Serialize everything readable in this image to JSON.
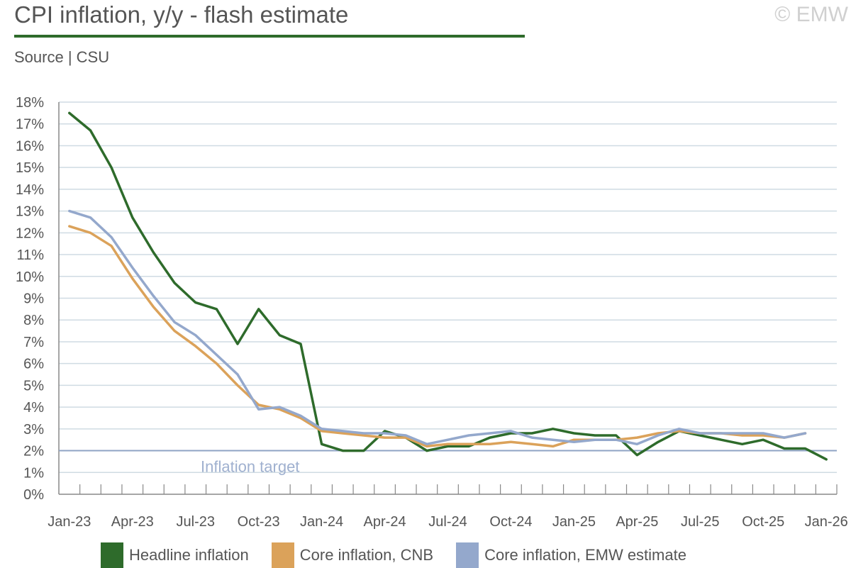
{
  "header": {
    "title": "CPI inflation, y/y - flash estimate",
    "subtitle": "Source | CSU",
    "copyright": "© EMW"
  },
  "colors": {
    "title_rule": "#2e6b2b",
    "grid": "#cfdbe3",
    "axis": "#888888",
    "target_line": "#8fa3c4",
    "target_label": "#9fb0cf"
  },
  "chart_data": {
    "type": "line",
    "title": "CPI inflation, y/y - flash estimate",
    "xlabel": "",
    "ylabel": "",
    "ylim": [
      0,
      18
    ],
    "y_tick_labels": [
      "0%",
      "1%",
      "2%",
      "3%",
      "4%",
      "5%",
      "6%",
      "7%",
      "8%",
      "9%",
      "10%",
      "11%",
      "12%",
      "13%",
      "14%",
      "15%",
      "16%",
      "17%",
      "18%"
    ],
    "x_tick_labels": [
      "Jan-23",
      "Apr-23",
      "Jul-23",
      "Oct-23",
      "Jan-24",
      "Apr-24",
      "Jul-24",
      "Oct-24",
      "Jan-25",
      "Apr-25",
      "Jul-25",
      "Oct-25",
      "Jan-26"
    ],
    "x": [
      "Jan-23",
      "Feb-23",
      "Mar-23",
      "Apr-23",
      "May-23",
      "Jun-23",
      "Jul-23",
      "Aug-23",
      "Sep-23",
      "Oct-23",
      "Nov-23",
      "Dec-23",
      "Jan-24",
      "Feb-24",
      "Mar-24",
      "Apr-24",
      "May-24",
      "Jun-24",
      "Jul-24",
      "Aug-24",
      "Sep-24",
      "Oct-24",
      "Nov-24",
      "Dec-24",
      "Jan-25",
      "Feb-25",
      "Mar-25",
      "Apr-25",
      "May-25",
      "Jun-25",
      "Jul-25",
      "Aug-25",
      "Sep-25",
      "Oct-25",
      "Nov-25",
      "Dec-25",
      "Jan-26"
    ],
    "grid": true,
    "legend_position": "bottom",
    "series": [
      {
        "name": "Headline inflation",
        "color": "#2e6b2b",
        "values": [
          17.5,
          16.7,
          15.0,
          12.7,
          11.1,
          9.7,
          8.8,
          8.5,
          6.9,
          8.5,
          7.3,
          6.9,
          2.3,
          2.0,
          2.0,
          2.9,
          2.6,
          2.0,
          2.2,
          2.2,
          2.6,
          2.8,
          2.8,
          3.0,
          2.8,
          2.7,
          2.7,
          1.8,
          2.4,
          2.9,
          2.7,
          2.5,
          2.3,
          2.5,
          2.1,
          2.1,
          1.6
        ]
      },
      {
        "name": "Core inflation, CNB",
        "color": "#dba25a",
        "values": [
          12.3,
          12.0,
          11.4,
          9.9,
          8.6,
          7.5,
          6.8,
          6.0,
          5.0,
          4.1,
          3.9,
          3.5,
          2.9,
          2.8,
          2.7,
          2.6,
          2.6,
          2.2,
          2.3,
          2.3,
          2.3,
          2.4,
          2.3,
          2.2,
          2.5,
          2.5,
          2.5,
          2.6,
          2.8,
          2.9,
          2.8,
          2.8,
          2.7,
          2.7,
          2.6,
          2.8,
          null
        ]
      },
      {
        "name": "Core inflation, EMW estimate",
        "color": "#94a8cc",
        "values": [
          13.0,
          12.7,
          11.8,
          10.4,
          9.1,
          7.9,
          7.3,
          6.4,
          5.5,
          3.9,
          4.0,
          3.6,
          3.0,
          2.9,
          2.8,
          2.8,
          2.7,
          2.3,
          2.5,
          2.7,
          2.8,
          2.9,
          2.6,
          2.5,
          2.4,
          2.5,
          2.5,
          2.3,
          2.7,
          3.0,
          2.8,
          2.8,
          2.8,
          2.8,
          2.6,
          2.8,
          null
        ]
      }
    ],
    "reference_line": {
      "value": 2,
      "label": "Inflation target"
    }
  },
  "legend": {
    "items": [
      {
        "label": "Headline inflation",
        "color": "#2e6b2b"
      },
      {
        "label": "Core inflation, CNB",
        "color": "#dba25a"
      },
      {
        "label": "Core inflation, EMW estimate",
        "color": "#94a8cc"
      }
    ]
  }
}
